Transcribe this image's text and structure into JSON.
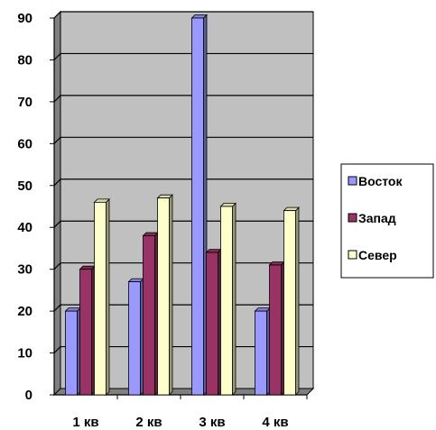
{
  "chart_data": {
    "type": "bar",
    "style": "3d-clustered-column",
    "categories": [
      "1 кв",
      "2 кв",
      "3 кв",
      "4 кв"
    ],
    "series": [
      {
        "name": "Восток",
        "values": [
          20,
          27,
          90,
          20
        ],
        "color": "#9999FF"
      },
      {
        "name": "Запад",
        "values": [
          30,
          38,
          34,
          31
        ],
        "color": "#993366"
      },
      {
        "name": "Север",
        "values": [
          46,
          47,
          45,
          44
        ],
        "color": "#FFFFCC"
      }
    ],
    "yticks": [
      "0",
      "10",
      "20",
      "30",
      "40",
      "50",
      "60",
      "70",
      "80",
      "90"
    ],
    "ylim": [
      0,
      90
    ],
    "grid": true,
    "plot_background": "#C0C0C0",
    "legend_position": "right",
    "title": "",
    "xlabel": "",
    "ylabel": ""
  }
}
